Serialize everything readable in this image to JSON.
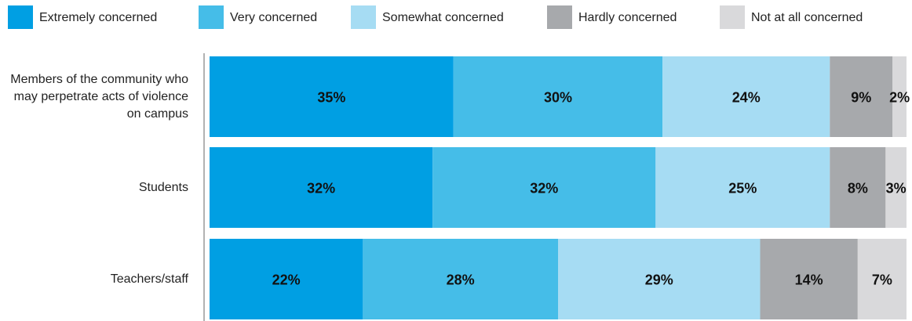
{
  "chart_data": {
    "type": "stacked-bar-horizontal",
    "categories": [
      "Members of the community who may perpetrate acts of violence on campus",
      "Students",
      "Teachers/staff"
    ],
    "series": [
      {
        "name": "Extremely concerned",
        "color": "#009fe3",
        "values": [
          35,
          32,
          22
        ],
        "value_labels": [
          "35%",
          "32%",
          "22%"
        ]
      },
      {
        "name": "Very concerned",
        "color": "#45bde8",
        "values": [
          30,
          32,
          28
        ],
        "value_labels": [
          "30%",
          "32%",
          "28%"
        ]
      },
      {
        "name": "Somewhat concerned",
        "color": "#a6dcf3",
        "values": [
          24,
          25,
          29
        ],
        "value_labels": [
          "24%",
          "25%",
          "29%"
        ]
      },
      {
        "name": "Hardly concerned",
        "color": "#a7a9ac",
        "values": [
          9,
          8,
          14
        ],
        "value_labels": [
          "9%",
          "8%",
          "14%"
        ]
      },
      {
        "name": "Not at all concerned",
        "color": "#d9d9db",
        "values": [
          2,
          3,
          7
        ],
        "value_labels": [
          "2%",
          "3%",
          "7%"
        ]
      }
    ],
    "xlim": [
      0,
      100
    ],
    "legend": "top"
  }
}
